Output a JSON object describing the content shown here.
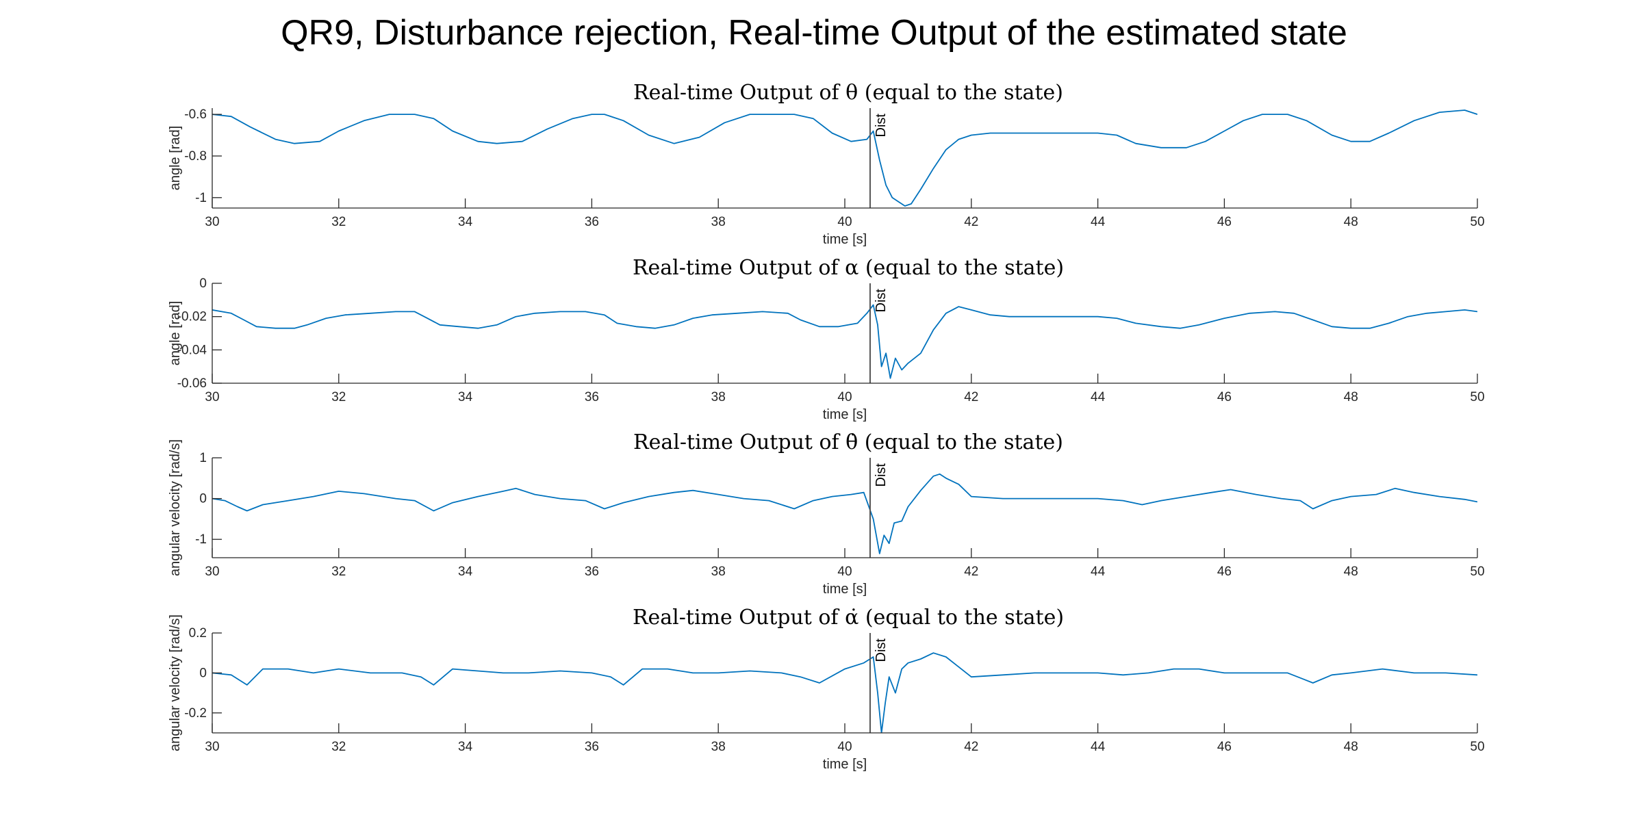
{
  "figure": {
    "title": "QR9, Disturbance rejection, Real-time Output of the estimated state"
  },
  "colors": {
    "trace": "#0072BD",
    "axis": "#262626",
    "marker": "#555555"
  },
  "chart_data": [
    {
      "type": "line",
      "title": "Real-time Output of θ (equal to the state)",
      "xlabel": "time [s]",
      "ylabel": "angle [rad]",
      "xlim": [
        30,
        50
      ],
      "ylim": [
        -1.05,
        -0.57
      ],
      "xticks": [
        30,
        32,
        34,
        36,
        38,
        40,
        42,
        44,
        46,
        48,
        50
      ],
      "yticks": [
        -1,
        -0.8,
        -0.6
      ],
      "ytick_labels": [
        "-1",
        "-0.8",
        "-0.6"
      ],
      "annotation": {
        "x": 40.4,
        "text": "Dist"
      },
      "series": [
        {
          "x": [
            30,
            30.3,
            30.6,
            31.0,
            31.3,
            31.7,
            32.0,
            32.4,
            32.8,
            33.2,
            33.5,
            33.8,
            34.2,
            34.5,
            34.9,
            35.3,
            35.7,
            36.0,
            36.2,
            36.5,
            36.9,
            37.3,
            37.7,
            38.1,
            38.5,
            38.9,
            39.2,
            39.5,
            39.8,
            40.1,
            40.35,
            40.45,
            40.55,
            40.65,
            40.75,
            40.85,
            40.95,
            41.05,
            41.2,
            41.4,
            41.6,
            41.8,
            42.0,
            42.3,
            42.8,
            43.5,
            44.0,
            44.3,
            44.6,
            45.0,
            45.4,
            45.7,
            46.0,
            46.3,
            46.6,
            47.0,
            47.3,
            47.7,
            48.0,
            48.3,
            48.6,
            49.0,
            49.4,
            49.8,
            50.0
          ],
          "y": [
            -0.6,
            -0.61,
            -0.66,
            -0.72,
            -0.74,
            -0.73,
            -0.68,
            -0.63,
            -0.6,
            -0.6,
            -0.62,
            -0.68,
            -0.73,
            -0.74,
            -0.73,
            -0.67,
            -0.62,
            -0.6,
            -0.6,
            -0.63,
            -0.7,
            -0.74,
            -0.71,
            -0.64,
            -0.6,
            -0.6,
            -0.6,
            -0.62,
            -0.69,
            -0.73,
            -0.72,
            -0.68,
            -0.82,
            -0.94,
            -1.0,
            -1.02,
            -1.04,
            -1.03,
            -0.96,
            -0.86,
            -0.77,
            -0.72,
            -0.7,
            -0.69,
            -0.69,
            -0.69,
            -0.69,
            -0.7,
            -0.74,
            -0.76,
            -0.76,
            -0.73,
            -0.68,
            -0.63,
            -0.6,
            -0.6,
            -0.63,
            -0.7,
            -0.73,
            -0.73,
            -0.69,
            -0.63,
            -0.59,
            -0.58,
            -0.6
          ]
        }
      ]
    },
    {
      "type": "line",
      "title": "Real-time Output of α (equal to the state)",
      "xlabel": "time [s]",
      "ylabel": "angle [rad]",
      "xlim": [
        30,
        50
      ],
      "ylim": [
        -0.06,
        0
      ],
      "xticks": [
        30,
        32,
        34,
        36,
        38,
        40,
        42,
        44,
        46,
        48,
        50
      ],
      "yticks": [
        -0.06,
        -0.04,
        -0.02,
        0
      ],
      "ytick_labels": [
        "-0.06",
        "-0.04",
        "-0.02",
        "0"
      ],
      "annotation": {
        "x": 40.4,
        "text": "Dist"
      },
      "series": [
        {
          "x": [
            30,
            30.3,
            30.5,
            30.7,
            31.0,
            31.3,
            31.5,
            31.8,
            32.1,
            32.5,
            32.9,
            33.2,
            33.4,
            33.6,
            33.9,
            34.2,
            34.5,
            34.8,
            35.1,
            35.5,
            35.9,
            36.2,
            36.4,
            36.7,
            37.0,
            37.3,
            37.6,
            37.9,
            38.3,
            38.7,
            39.1,
            39.3,
            39.6,
            39.9,
            40.2,
            40.35,
            40.45,
            40.52,
            40.58,
            40.65,
            40.72,
            40.8,
            40.9,
            41.0,
            41.2,
            41.4,
            41.6,
            41.8,
            42.0,
            42.3,
            42.6,
            43.0,
            43.5,
            44.0,
            44.3,
            44.6,
            45.0,
            45.3,
            45.6,
            46.0,
            46.4,
            46.8,
            47.1,
            47.4,
            47.7,
            48.0,
            48.3,
            48.6,
            48.9,
            49.2,
            49.5,
            49.8,
            50.0
          ],
          "y": [
            -0.016,
            -0.018,
            -0.022,
            -0.026,
            -0.027,
            -0.027,
            -0.025,
            -0.021,
            -0.019,
            -0.018,
            -0.017,
            -0.017,
            -0.021,
            -0.025,
            -0.026,
            -0.027,
            -0.025,
            -0.02,
            -0.018,
            -0.017,
            -0.017,
            -0.019,
            -0.024,
            -0.026,
            -0.027,
            -0.025,
            -0.021,
            -0.019,
            -0.018,
            -0.017,
            -0.018,
            -0.022,
            -0.026,
            -0.026,
            -0.024,
            -0.018,
            -0.013,
            -0.025,
            -0.05,
            -0.042,
            -0.057,
            -0.045,
            -0.052,
            -0.048,
            -0.042,
            -0.028,
            -0.018,
            -0.014,
            -0.016,
            -0.019,
            -0.02,
            -0.02,
            -0.02,
            -0.02,
            -0.021,
            -0.024,
            -0.026,
            -0.027,
            -0.025,
            -0.021,
            -0.018,
            -0.017,
            -0.018,
            -0.022,
            -0.026,
            -0.027,
            -0.027,
            -0.024,
            -0.02,
            -0.018,
            -0.017,
            -0.016,
            -0.017
          ]
        }
      ]
    },
    {
      "type": "line",
      "title": "Real-time Output of θ̇ (equal to the state)",
      "xlabel": "time [s]",
      "ylabel": "angular velocity [rad/s]",
      "xlim": [
        30,
        50
      ],
      "ylim": [
        -1.45,
        1.0
      ],
      "xticks": [
        30,
        32,
        34,
        36,
        38,
        40,
        42,
        44,
        46,
        48,
        50
      ],
      "yticks": [
        -1,
        0,
        1
      ],
      "ytick_labels": [
        "-1",
        "0",
        "1"
      ],
      "annotation": {
        "x": 40.4,
        "text": "Dist"
      },
      "series": [
        {
          "x": [
            30,
            30.2,
            30.4,
            30.55,
            30.8,
            31.2,
            31.6,
            32.0,
            32.4,
            32.9,
            33.2,
            33.5,
            33.8,
            34.2,
            34.6,
            34.8,
            35.1,
            35.5,
            35.9,
            36.2,
            36.5,
            36.9,
            37.3,
            37.6,
            38.0,
            38.4,
            38.8,
            39.2,
            39.5,
            39.8,
            40.1,
            40.3,
            40.45,
            40.55,
            40.62,
            40.7,
            40.78,
            40.9,
            41.0,
            41.2,
            41.4,
            41.5,
            41.6,
            41.8,
            42.0,
            42.5,
            43.0,
            43.5,
            44.0,
            44.4,
            44.7,
            45.0,
            45.4,
            45.8,
            46.1,
            46.5,
            46.9,
            47.2,
            47.4,
            47.7,
            48.0,
            48.4,
            48.7,
            49.0,
            49.4,
            49.8,
            50.0
          ],
          "y": [
            0.0,
            -0.05,
            -0.2,
            -0.3,
            -0.15,
            -0.05,
            0.05,
            0.18,
            0.12,
            0.0,
            -0.05,
            -0.3,
            -0.1,
            0.05,
            0.18,
            0.25,
            0.1,
            0.0,
            -0.05,
            -0.25,
            -0.1,
            0.05,
            0.15,
            0.2,
            0.1,
            0.0,
            -0.05,
            -0.25,
            -0.05,
            0.05,
            0.1,
            0.15,
            -0.5,
            -1.35,
            -0.9,
            -1.1,
            -0.6,
            -0.55,
            -0.2,
            0.2,
            0.55,
            0.6,
            0.5,
            0.35,
            0.05,
            0.0,
            0.0,
            0.0,
            0.0,
            -0.05,
            -0.15,
            -0.05,
            0.05,
            0.15,
            0.22,
            0.1,
            0.0,
            -0.05,
            -0.25,
            -0.05,
            0.05,
            0.1,
            0.25,
            0.15,
            0.05,
            -0.02,
            -0.08
          ]
        }
      ]
    },
    {
      "type": "line",
      "title": "Real-time Output of α̇ (equal to the state)",
      "xlabel": "time [s]",
      "ylabel": "angular velocity [rad/s]",
      "xlim": [
        30,
        50
      ],
      "ylim": [
        -0.3,
        0.2
      ],
      "xticks": [
        30,
        32,
        34,
        36,
        38,
        40,
        42,
        44,
        46,
        48,
        50
      ],
      "yticks": [
        -0.2,
        0,
        0.2
      ],
      "ytick_labels": [
        "-0.2",
        "0",
        "0.2"
      ],
      "annotation": {
        "x": 40.4,
        "text": "Dist"
      },
      "series": [
        {
          "x": [
            30,
            30.3,
            30.55,
            30.8,
            31.2,
            31.6,
            32.0,
            32.5,
            33.0,
            33.3,
            33.5,
            33.8,
            34.2,
            34.6,
            35.0,
            35.5,
            36.0,
            36.3,
            36.5,
            36.8,
            37.2,
            37.6,
            38.0,
            38.5,
            39.0,
            39.3,
            39.6,
            40.0,
            40.3,
            40.45,
            40.52,
            40.58,
            40.64,
            40.7,
            40.8,
            40.9,
            41.0,
            41.2,
            41.4,
            41.6,
            41.8,
            42.0,
            42.5,
            43.0,
            43.5,
            44.0,
            44.4,
            44.8,
            45.2,
            45.6,
            46.0,
            46.5,
            47.0,
            47.4,
            47.7,
            48.0,
            48.5,
            49.0,
            49.5,
            50.0
          ],
          "y": [
            0.0,
            -0.01,
            -0.06,
            0.02,
            0.02,
            0.0,
            0.02,
            0.0,
            0.0,
            -0.02,
            -0.06,
            0.02,
            0.01,
            0.0,
            0.0,
            0.01,
            0.0,
            -0.02,
            -0.06,
            0.02,
            0.02,
            0.0,
            0.0,
            0.01,
            0.0,
            -0.02,
            -0.05,
            0.02,
            0.05,
            0.08,
            -0.1,
            -0.3,
            -0.15,
            -0.02,
            -0.1,
            0.02,
            0.05,
            0.07,
            0.1,
            0.08,
            0.03,
            -0.02,
            -0.01,
            0.0,
            0.0,
            0.0,
            -0.01,
            0.0,
            0.02,
            0.02,
            0.0,
            0.0,
            0.0,
            -0.05,
            -0.01,
            0.0,
            0.02,
            0.0,
            0.0,
            -0.01
          ]
        }
      ]
    }
  ]
}
